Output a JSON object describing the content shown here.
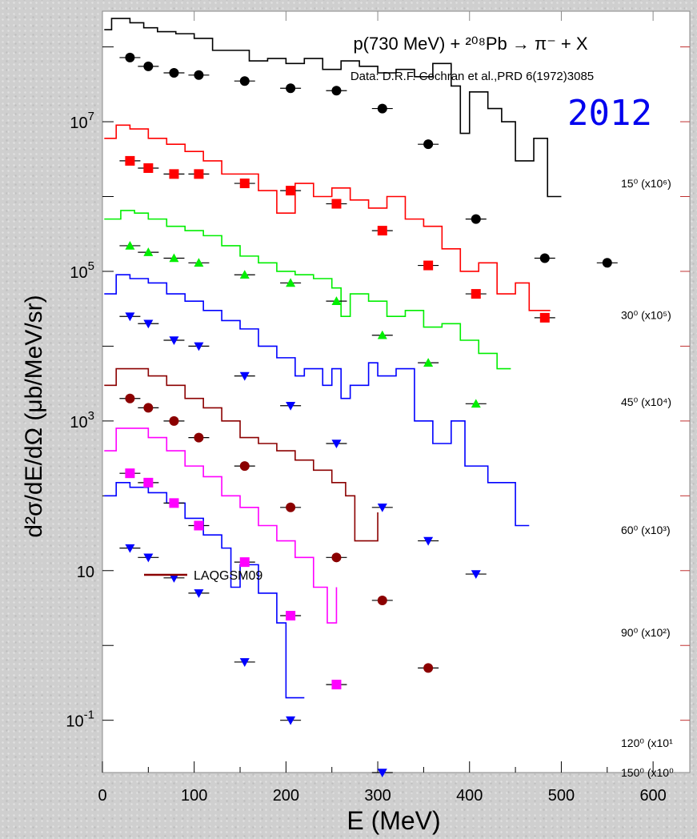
{
  "chart_data": {
    "type": "scatter",
    "title": "p(730 MeV) + ²⁰⁸Pb → π⁻ + X",
    "subtitle": "Data:  D.R.F. Cochran et al.,PRD 6(1972)3085",
    "badge": "2012",
    "xlabel": "E (MeV)",
    "ylabel": "d²σ/dE/dΩ (μb/MeV/sr)",
    "xlim": [
      0,
      640
    ],
    "ylim": [
      0.02,
      300000000.0
    ],
    "yscale": "log",
    "x_ticks": [
      "0",
      "100",
      "200",
      "300",
      "400",
      "500",
      "600"
    ],
    "y_ticks": [
      {
        "value": 10000000.0,
        "base": "10",
        "exp": "7"
      },
      {
        "value": 100000.0,
        "base": "10",
        "exp": "5"
      },
      {
        "value": 1000.0,
        "base": "10",
        "exp": "3"
      },
      {
        "value": 10,
        "base": "10",
        "exp": ""
      },
      {
        "value": 0.1,
        "base": "10",
        "exp": "-1"
      }
    ],
    "legend": {
      "label": "LAQGSM09",
      "color": "#8b0000",
      "placement": "bottom-left"
    },
    "series": [
      {
        "name": "15⁰ (x10⁶)",
        "label_value": 1500000.0,
        "color": "#000000",
        "marker": "circle",
        "points": [
          [
            30,
            72000000.0
          ],
          [
            50,
            55000000.0
          ],
          [
            78,
            45000000.0
          ],
          [
            105,
            42000000.0
          ],
          [
            155,
            35000000.0
          ],
          [
            205,
            28000000.0
          ],
          [
            255,
            26000000.0
          ],
          [
            305,
            15000000.0
          ],
          [
            355,
            5000000.0
          ],
          [
            407,
            500000.0
          ],
          [
            482,
            150000.0
          ],
          [
            550,
            130000.0
          ]
        ],
        "curve": [
          [
            2,
            170000000.0
          ],
          [
            10,
            240000000.0
          ],
          [
            20,
            240000000.0
          ],
          [
            30,
            210000000.0
          ],
          [
            45,
            180000000.0
          ],
          [
            60,
            160000000.0
          ],
          [
            80,
            150000000.0
          ],
          [
            100,
            130000000.0
          ],
          [
            120,
            90000000.0
          ],
          [
            140,
            90000000.0
          ],
          [
            160,
            65000000.0
          ],
          [
            180,
            70000000.0
          ],
          [
            200,
            60000000.0
          ],
          [
            220,
            70000000.0
          ],
          [
            240,
            50000000.0
          ],
          [
            260,
            65000000.0
          ],
          [
            280,
            55000000.0
          ],
          [
            300,
            45000000.0
          ],
          [
            320,
            50000000.0
          ],
          [
            340,
            40000000.0
          ],
          [
            360,
            60000000.0
          ],
          [
            380,
            30000000.0
          ],
          [
            390,
            7000000.0
          ],
          [
            400,
            25000000.0
          ],
          [
            420,
            15000000.0
          ],
          [
            435,
            10000000.0
          ],
          [
            450,
            3000000.0
          ],
          [
            470,
            6000000.0
          ],
          [
            485,
            1000000.0
          ],
          [
            500,
            1000000.0
          ]
        ]
      },
      {
        "name": "30⁰ (x10⁵)",
        "label_value": 26000.0,
        "color": "#ff0000",
        "marker": "square",
        "points": [
          [
            30,
            3000000.0
          ],
          [
            50,
            2400000.0
          ],
          [
            78,
            2000000.0
          ],
          [
            105,
            2000000.0
          ],
          [
            155,
            1500000.0
          ],
          [
            205,
            1200000.0
          ],
          [
            255,
            800000.0
          ],
          [
            305,
            350000.0
          ],
          [
            355,
            120000.0
          ],
          [
            407,
            50000.0
          ],
          [
            482,
            24000.0
          ]
        ],
        "curve": [
          [
            2,
            6000000.0
          ],
          [
            15,
            9000000.0
          ],
          [
            30,
            8000000.0
          ],
          [
            50,
            6000000.0
          ],
          [
            70,
            5000000.0
          ],
          [
            90,
            4000000.0
          ],
          [
            110,
            3000000.0
          ],
          [
            130,
            2000000.0
          ],
          [
            150,
            2000000.0
          ],
          [
            170,
            1200000.0
          ],
          [
            190,
            600000.0
          ],
          [
            210,
            1500000.0
          ],
          [
            230,
            1000000.0
          ],
          [
            250,
            1300000.0
          ],
          [
            270,
            900000.0
          ],
          [
            290,
            700000.0
          ],
          [
            310,
            1000000.0
          ],
          [
            330,
            500000.0
          ],
          [
            350,
            400000.0
          ],
          [
            370,
            200000.0
          ],
          [
            390,
            100000.0
          ],
          [
            410,
            130000.0
          ],
          [
            430,
            50000.0
          ],
          [
            450,
            70000.0
          ],
          [
            465,
            30000.0
          ],
          [
            488,
            30000.0
          ]
        ]
      },
      {
        "name": "45⁰ (x10⁴)",
        "label_value": 1800.0,
        "color": "#00ee00",
        "marker": "triangle-up",
        "points": [
          [
            30,
            220000.0
          ],
          [
            50,
            180000.0
          ],
          [
            78,
            150000.0
          ],
          [
            105,
            130000.0
          ],
          [
            155,
            90000.0
          ],
          [
            205,
            70000.0
          ],
          [
            255,
            40000.0
          ],
          [
            305,
            14000.0
          ],
          [
            355,
            6000.0
          ],
          [
            407,
            1700.0
          ]
        ],
        "curve": [
          [
            2,
            500000.0
          ],
          [
            20,
            650000.0
          ],
          [
            35,
            600000.0
          ],
          [
            50,
            500000.0
          ],
          [
            70,
            400000.0
          ],
          [
            90,
            350000.0
          ],
          [
            110,
            300000.0
          ],
          [
            130,
            220000.0
          ],
          [
            150,
            160000.0
          ],
          [
            170,
            130000.0
          ],
          [
            190,
            100000.0
          ],
          [
            210,
            90000.0
          ],
          [
            230,
            80000.0
          ],
          [
            250,
            60000.0
          ],
          [
            260,
            25000.0
          ],
          [
            270,
            50000.0
          ],
          [
            290,
            40000.0
          ],
          [
            310,
            25000.0
          ],
          [
            330,
            30000.0
          ],
          [
            350,
            18000.0
          ],
          [
            370,
            20000.0
          ],
          [
            390,
            12000.0
          ],
          [
            410,
            8000.0
          ],
          [
            430,
            5000.0
          ],
          [
            445,
            5000.0
          ]
        ]
      },
      {
        "name": "60⁰ (x10³)",
        "label_value": 35.0,
        "color": "#0000ff",
        "marker": "triangle-down",
        "points": [
          [
            30,
            25000.0
          ],
          [
            50,
            20000.0
          ],
          [
            78,
            12000.0
          ],
          [
            105,
            10000.0
          ],
          [
            155,
            4000.0
          ],
          [
            205,
            1600.0
          ],
          [
            255,
            500.0
          ],
          [
            305,
            70.0
          ],
          [
            355,
            25.0
          ],
          [
            407,
            9.0
          ]
        ],
        "curve": [
          [
            2,
            50000.0
          ],
          [
            15,
            90000.0
          ],
          [
            30,
            80000.0
          ],
          [
            50,
            70000.0
          ],
          [
            70,
            50000.0
          ],
          [
            90,
            40000.0
          ],
          [
            110,
            30000.0
          ],
          [
            130,
            22000.0
          ],
          [
            150,
            17000.0
          ],
          [
            170,
            10000.0
          ],
          [
            190,
            7000.0
          ],
          [
            210,
            4000.0
          ],
          [
            220,
            5000.0
          ],
          [
            240,
            3000.0
          ],
          [
            250,
            5000.0
          ],
          [
            260,
            2000.0
          ],
          [
            270,
            3000.0
          ],
          [
            290,
            6000.0
          ],
          [
            300,
            4000.0
          ],
          [
            320,
            5000.0
          ],
          [
            340,
            1000.0
          ],
          [
            360,
            500.0
          ],
          [
            380,
            1000.0
          ],
          [
            395,
            250.0
          ],
          [
            405,
            250.0
          ],
          [
            420,
            150.0
          ],
          [
            430,
            150.0
          ],
          [
            450,
            40.0
          ],
          [
            465,
            40.0
          ]
        ]
      },
      {
        "name": "90⁰ (x10²)",
        "label_value": 1.5,
        "color": "#8b0000",
        "marker": "circle",
        "points": [
          [
            30,
            2000.0
          ],
          [
            50,
            1500.0
          ],
          [
            78,
            1000.0
          ],
          [
            105,
            600.0
          ],
          [
            155,
            250.0
          ],
          [
            205,
            70.0
          ],
          [
            255,
            15.0
          ],
          [
            305,
            4.0
          ],
          [
            355,
            0.5
          ]
        ],
        "curve": [
          [
            2,
            3000.0
          ],
          [
            15,
            5000.0
          ],
          [
            30,
            5000.0
          ],
          [
            50,
            4000.0
          ],
          [
            70,
            3000.0
          ],
          [
            90,
            2000.0
          ],
          [
            110,
            1500.0
          ],
          [
            130,
            1000.0
          ],
          [
            150,
            600.0
          ],
          [
            170,
            500.0
          ],
          [
            190,
            400.0
          ],
          [
            210,
            300.0
          ],
          [
            230,
            220.0
          ],
          [
            250,
            150.0
          ],
          [
            265,
            100.0
          ],
          [
            275,
            25.0
          ],
          [
            290,
            25.0
          ],
          [
            300,
            60.0
          ]
        ]
      },
      {
        "name": "120⁰ (x10¹",
        "label_value": 0.05,
        "color": "#ff00ff",
        "marker": "square",
        "points": [
          [
            30,
            200.0
          ],
          [
            50,
            150.0
          ],
          [
            78,
            80.0
          ],
          [
            105,
            40.0
          ],
          [
            155,
            13.0
          ],
          [
            205,
            2.5
          ],
          [
            255,
            0.3
          ]
        ],
        "curve": [
          [
            2,
            400.0
          ],
          [
            15,
            800.0
          ],
          [
            30,
            800.0
          ],
          [
            50,
            600.0
          ],
          [
            70,
            400.0
          ],
          [
            90,
            250.0
          ],
          [
            110,
            180.0
          ],
          [
            130,
            100.0
          ],
          [
            150,
            70.0
          ],
          [
            170,
            40.0
          ],
          [
            190,
            25.0
          ],
          [
            210,
            15.0
          ],
          [
            230,
            6.0
          ],
          [
            245,
            2.0
          ],
          [
            255,
            6.0
          ]
        ]
      },
      {
        "name": "150⁰ (x10⁰",
        "label_value": 0.01,
        "color": "#0000ff",
        "marker": "triangle-down",
        "points": [
          [
            30,
            20.0
          ],
          [
            50,
            15.0
          ],
          [
            78,
            8.0
          ],
          [
            105,
            5.0
          ],
          [
            155,
            0.6
          ],
          [
            205,
            0.1
          ],
          [
            305,
            0.02
          ]
        ],
        "curve": [
          [
            2,
            100.0
          ],
          [
            15,
            150.0
          ],
          [
            30,
            130.0
          ],
          [
            50,
            110.0
          ],
          [
            70,
            80.0
          ],
          [
            90,
            50.0
          ],
          [
            110,
            30.0
          ],
          [
            130,
            20.0
          ],
          [
            140,
            6.0
          ],
          [
            150,
            12.0
          ],
          [
            170,
            5.0
          ],
          [
            190,
            2.0
          ],
          [
            200,
            0.2
          ],
          [
            220,
            0.2
          ]
        ]
      }
    ]
  }
}
